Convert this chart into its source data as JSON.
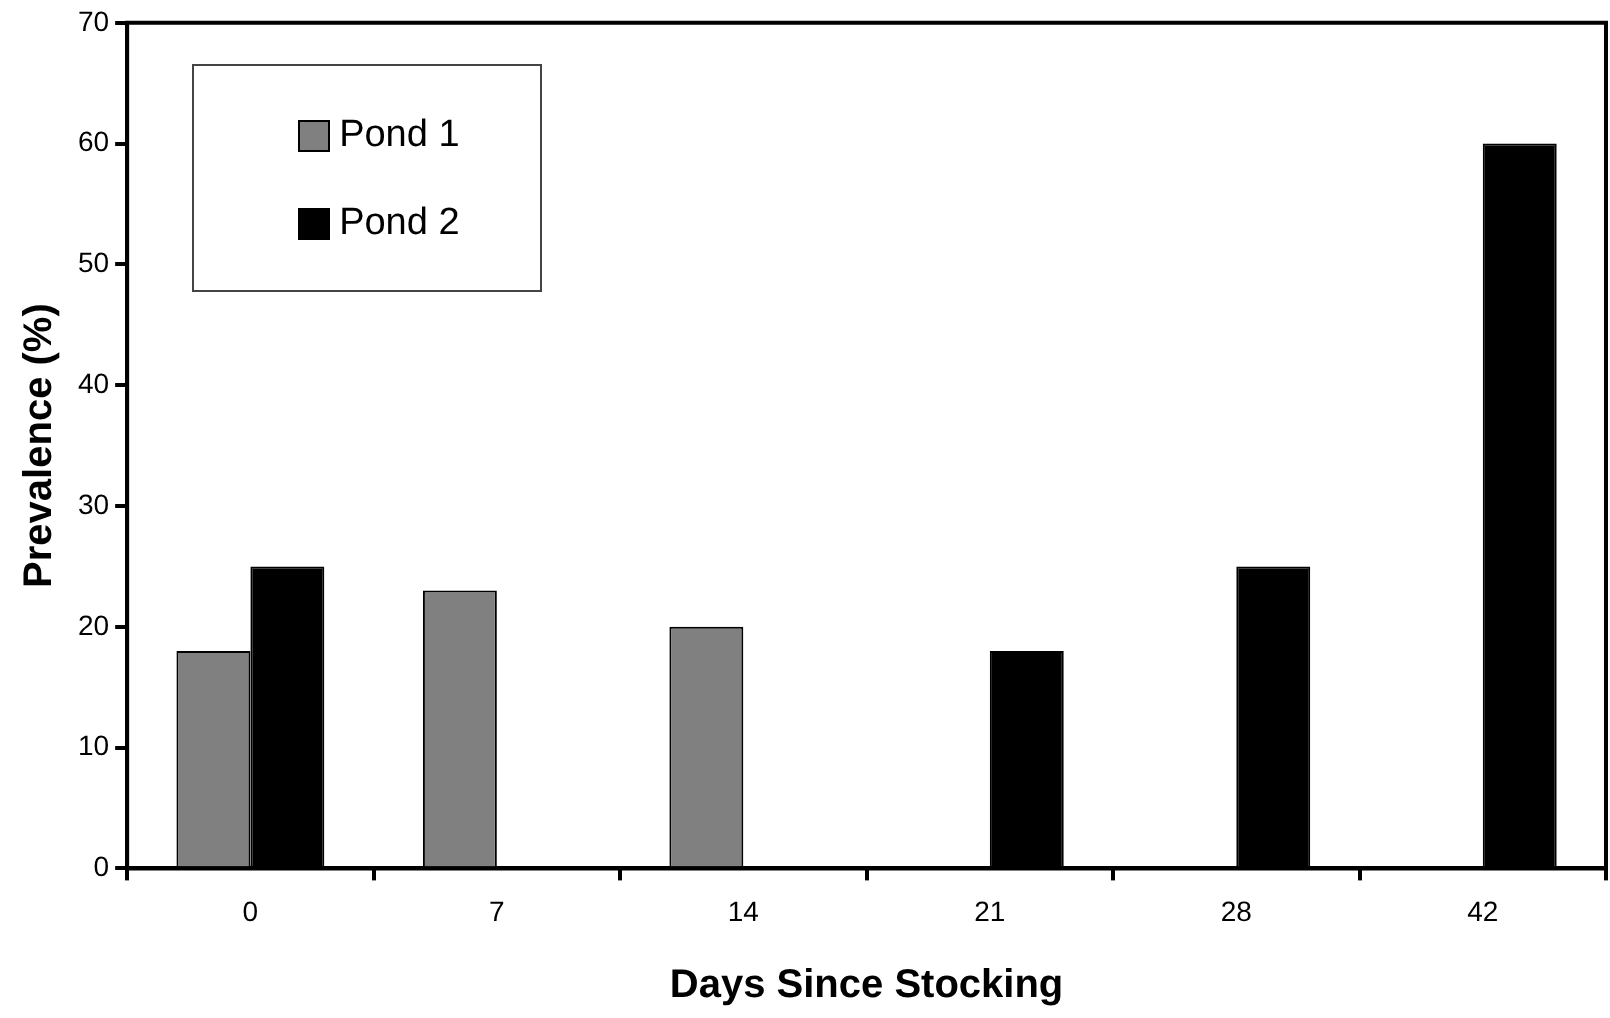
{
  "chart_data": {
    "type": "bar",
    "xlabel": "Days Since Stocking",
    "ylabel": "Prevalence (%)",
    "categories": [
      "0",
      "7",
      "14",
      "21",
      "28",
      "42"
    ],
    "series": [
      {
        "name": "Pond 1",
        "color": "#808080",
        "values": [
          18,
          23,
          20,
          null,
          null,
          null
        ]
      },
      {
        "name": "Pond 2",
        "color": "#000000",
        "values": [
          25,
          null,
          null,
          18,
          25,
          60
        ]
      }
    ],
    "ylim": [
      0,
      70
    ],
    "yticks": [
      0,
      10,
      20,
      30,
      40,
      50,
      60,
      70
    ],
    "grid": false,
    "legend": "top left"
  }
}
